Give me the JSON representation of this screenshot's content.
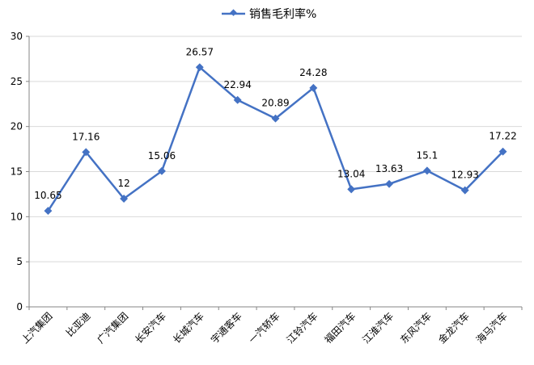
{
  "chart_data": {
    "type": "line",
    "title": "",
    "xlabel": "",
    "ylabel": "",
    "categories": [
      "上汽集团",
      "比亚迪",
      "广汽集团",
      "长安汽车",
      "长城汽车",
      "宇通客车",
      "一汽轿车",
      "江铃汽车",
      "福田汽车",
      "江淮汽车",
      "东风汽车",
      "金龙汽车",
      "海马汽车"
    ],
    "series": [
      {
        "name": "销售毛利率%",
        "values": [
          10.65,
          17.16,
          12,
          15.06,
          26.57,
          22.94,
          20.89,
          24.28,
          13.04,
          13.63,
          15.1,
          12.93,
          17.22
        ],
        "labels": [
          "10.65",
          "17.16",
          "12",
          "15.06",
          "26.57",
          "22.94",
          "20.89",
          "24.28",
          "13.04",
          "13.63",
          "15.1",
          "12.93",
          "17.22"
        ]
      }
    ],
    "ylim": [
      0,
      30
    ],
    "yticks": [
      "0",
      "5",
      "10",
      "15",
      "20",
      "25",
      "30"
    ],
    "grid": true,
    "legend_position": "top",
    "colors": {
      "series": "#4472C4",
      "grid": "#D9D9D9",
      "axis": "#868686"
    }
  }
}
